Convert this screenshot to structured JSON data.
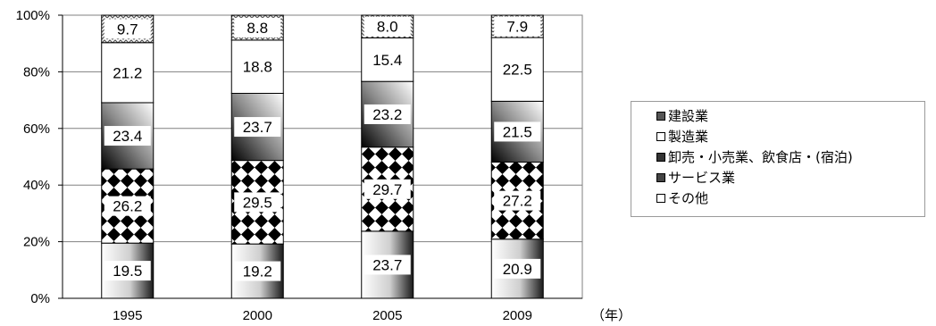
{
  "chart_data": {
    "type": "bar",
    "stacked": true,
    "normalized": true,
    "categories": [
      "1995",
      "2000",
      "2005",
      "2009"
    ],
    "xlabel": "（年）",
    "ylabel": "",
    "title": "",
    "ylim": [
      0,
      100
    ],
    "yticks": [
      "0%",
      "20%",
      "40%",
      "60%",
      "80%",
      "100%"
    ],
    "grid": true,
    "legend_position": "right",
    "series": [
      {
        "name": "建設業",
        "values": [
          19.5,
          19.2,
          23.7,
          20.9
        ],
        "labels": [
          "19.5",
          "19.2",
          "23.7",
          "20.9"
        ]
      },
      {
        "name": "製造業",
        "values": [
          26.2,
          29.5,
          29.7,
          27.2
        ],
        "labels": [
          "26.2",
          "29.5",
          "29.7",
          "27.2"
        ]
      },
      {
        "name": "卸売・小売業、飲食店・(宿泊)",
        "values": [
          23.4,
          23.7,
          23.2,
          21.5
        ],
        "labels": [
          "23.4",
          "23.7",
          "23.2",
          "21.5"
        ]
      },
      {
        "name": "サービス業",
        "values": [
          21.2,
          18.8,
          15.4,
          22.5
        ],
        "labels": [
          "21.2",
          "18.8",
          "15.4",
          "22.5"
        ]
      },
      {
        "name": "その他",
        "values": [
          9.7,
          8.8,
          8.0,
          7.9
        ],
        "labels": [
          "9.7",
          "8.8",
          "8.0",
          "7.9"
        ]
      }
    ]
  }
}
